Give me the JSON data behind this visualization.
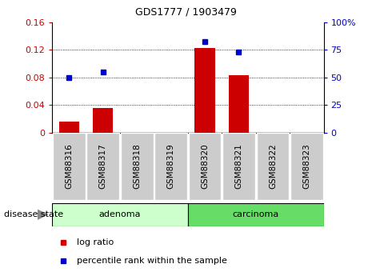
{
  "title": "GDS1777 / 1903479",
  "samples": [
    "GSM88316",
    "GSM88317",
    "GSM88318",
    "GSM88319",
    "GSM88320",
    "GSM88321",
    "GSM88322",
    "GSM88323"
  ],
  "log_ratio": [
    0.016,
    0.035,
    0.0,
    0.0,
    0.123,
    0.083,
    0.0,
    0.0
  ],
  "percentile_rank": [
    50.0,
    55.0,
    null,
    null,
    82.0,
    73.0,
    null,
    null
  ],
  "ylim_left": [
    0,
    0.16
  ],
  "ylim_right": [
    0,
    100
  ],
  "yticks_left": [
    0,
    0.04,
    0.08,
    0.12,
    0.16
  ],
  "yticks_right": [
    0,
    25,
    50,
    75,
    100
  ],
  "ytick_labels_left": [
    "0",
    "0.04",
    "0.08",
    "0.12",
    "0.16"
  ],
  "ytick_labels_right": [
    "0",
    "25",
    "50",
    "75",
    "100%"
  ],
  "bar_color": "#cc0000",
  "dot_color": "#0000cc",
  "tick_label_color_left": "#cc0000",
  "tick_label_color_right": "#0000cc",
  "xtick_bg_color": "#cccccc",
  "adenoma_color": "#ccffcc",
  "carcinoma_color": "#66dd66",
  "group_border_color": "#000000",
  "label_log_ratio": "log ratio",
  "label_percentile": "percentile rank within the sample",
  "disease_state_label": "disease state",
  "groups": [
    {
      "label": "adenoma",
      "indices": [
        0,
        1,
        2,
        3
      ]
    },
    {
      "label": "carcinoma",
      "indices": [
        4,
        5,
        6,
        7
      ]
    }
  ],
  "title_fontsize": 9,
  "axis_fontsize": 8,
  "xtick_fontsize": 7.5,
  "legend_fontsize": 8
}
